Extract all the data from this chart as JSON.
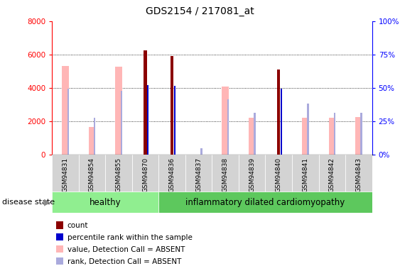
{
  "title": "GDS2154 / 217081_at",
  "samples": [
    "GSM94831",
    "GSM94854",
    "GSM94855",
    "GSM94870",
    "GSM94836",
    "GSM94837",
    "GSM94838",
    "GSM94839",
    "GSM94840",
    "GSM94841",
    "GSM94842",
    "GSM94843"
  ],
  "groups": [
    "healthy",
    "healthy",
    "healthy",
    "healthy",
    "inflammatory dilated cardiomyopathy",
    "inflammatory dilated cardiomyopathy",
    "inflammatory dilated cardiomyopathy",
    "inflammatory dilated cardiomyopathy",
    "inflammatory dilated cardiomyopathy",
    "inflammatory dilated cardiomyopathy",
    "inflammatory dilated cardiomyopathy",
    "inflammatory dilated cardiomyopathy"
  ],
  "count": [
    null,
    null,
    null,
    6250,
    5900,
    null,
    null,
    null,
    5100,
    null,
    null,
    null
  ],
  "percentile_rank": [
    null,
    null,
    null,
    4150,
    4100,
    null,
    null,
    null,
    3950,
    null,
    null,
    null
  ],
  "value_absent": [
    5300,
    1650,
    5250,
    null,
    null,
    null,
    4080,
    2200,
    null,
    2200,
    2200,
    2230
  ],
  "rank_absent": [
    3950,
    2200,
    3800,
    null,
    null,
    350,
    3300,
    2500,
    null,
    3050,
    2480,
    2500
  ],
  "ylim_left": [
    0,
    8000
  ],
  "ylim_right": [
    0,
    100
  ],
  "right_ticks": [
    0,
    25,
    50,
    75,
    100
  ],
  "left_ticks": [
    0,
    2000,
    4000,
    6000,
    8000
  ],
  "bar_color_dark_red": "#8B0000",
  "bar_color_blue": "#0000CD",
  "bar_color_pink": "#FFB6B6",
  "bar_color_light_blue": "#AAAADD",
  "color_healthy": "#90EE90",
  "color_inflam": "#5DC85D",
  "figsize": [
    5.63,
    3.75
  ],
  "dpi": 100
}
